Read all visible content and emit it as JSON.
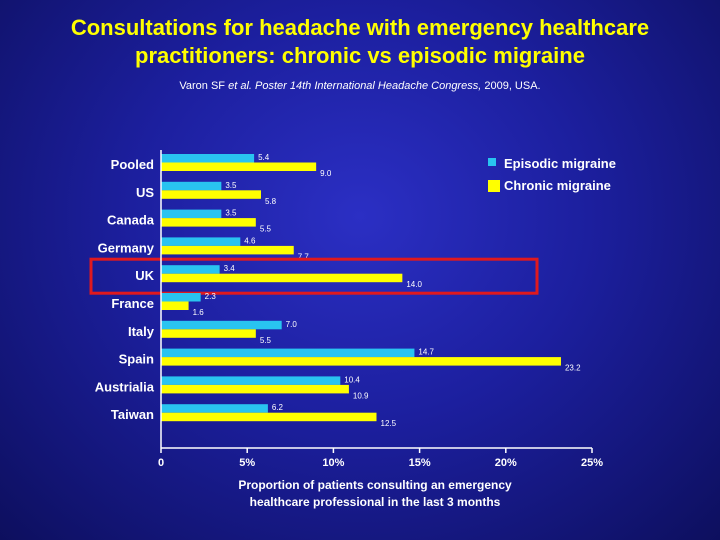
{
  "title_line1": "Consultations for headache with emergency healthcare",
  "title_line2": "practitioners: chronic vs episodic migraine",
  "citation": {
    "authors": "Varon SF",
    "etal": "et al.",
    "source": "Poster 14th International Headache Congress,",
    "year": "2009, USA."
  },
  "chart_data": {
    "type": "bar",
    "orientation": "horizontal",
    "categories": [
      "Pooled",
      "US",
      "Canada",
      "Germany",
      "UK",
      "France",
      "Italy",
      "Spain",
      "Austrialia",
      "Taiwan"
    ],
    "series": [
      {
        "name": "Episodic migraine",
        "color": "#29c4f0",
        "values": [
          5.4,
          3.5,
          3.5,
          4.6,
          3.4,
          2.3,
          7.0,
          14.7,
          10.4,
          6.2
        ],
        "labels": [
          "5.4",
          "3.5",
          "3.5",
          "4.6",
          "3.4",
          "2.3",
          "7.0",
          "14.7",
          "10.4",
          "6.2"
        ]
      },
      {
        "name": "Chronic migraine",
        "color": "#ffff00",
        "values": [
          9.0,
          5.8,
          5.5,
          7.7,
          14.0,
          1.6,
          5.5,
          23.2,
          10.9,
          12.5
        ],
        "labels": [
          "9.0",
          "5.8",
          "5.5",
          "7.7",
          "14.0",
          "1.6",
          "5.5",
          "23.2",
          "10.9",
          "12.5"
        ]
      }
    ],
    "xlim": [
      0,
      25
    ],
    "xticks": [
      0,
      5,
      10,
      15,
      20,
      25
    ],
    "xtick_labels": [
      "0",
      "5%",
      "10%",
      "15%",
      "20%",
      "25%"
    ],
    "xlabel_line1": "Proportion of patients consulting an emergency",
    "xlabel_line2": "healthcare professional in the last 3 months",
    "legend_position": "top-right",
    "highlight_category": "UK",
    "highlight_color": "#e0191e",
    "axis_color": "#ffffff"
  }
}
